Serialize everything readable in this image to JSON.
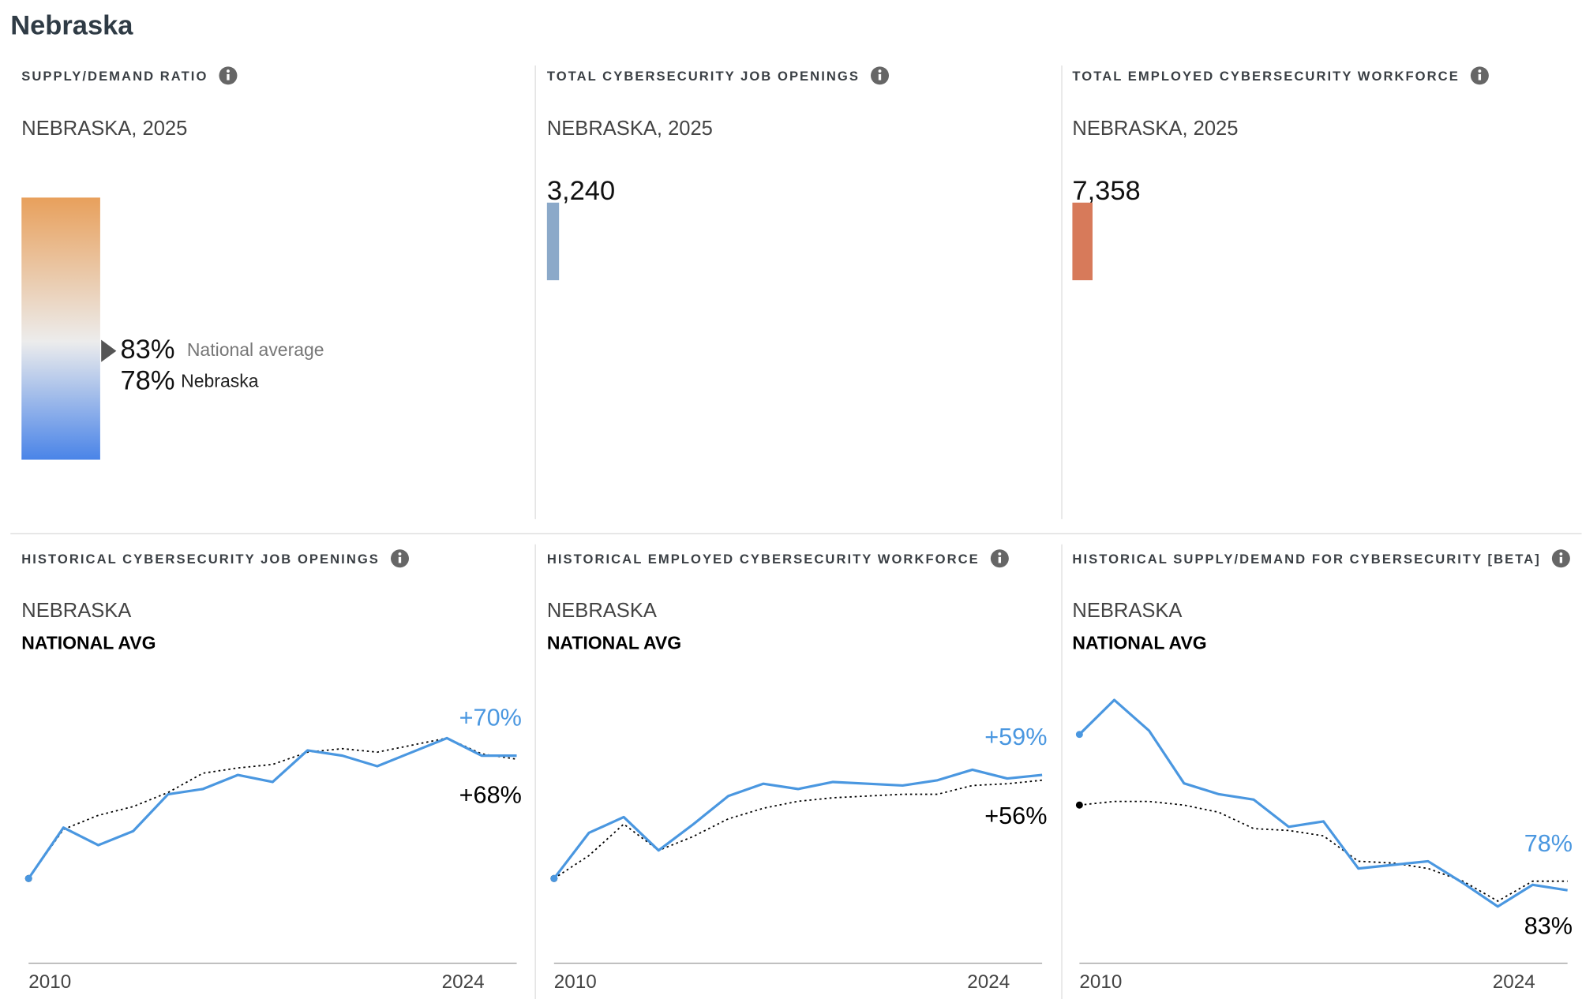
{
  "header": {
    "title": "Nebraska"
  },
  "chart_data": [
    {
      "type": "gauge",
      "title": "SUPPLY/DEMAND RATIO",
      "subtitle": "NEBRASKA, 2025",
      "series": [
        {
          "name": "National average",
          "values": [
            83
          ],
          "value_labels": [
            "83%"
          ]
        },
        {
          "name": "Nebraska",
          "values": [
            78
          ],
          "value_labels": [
            "78%"
          ]
        }
      ],
      "ylim": [
        0,
        200
      ],
      "colors": [
        "#e8a05c",
        "#ececec",
        "#4a84e8"
      ]
    },
    {
      "type": "bar",
      "title": "TOTAL CYBERSECURITY JOB OPENINGS",
      "subtitle": "NEBRASKA, 2025",
      "values": [
        3240
      ],
      "value_labels": [
        "3,240"
      ],
      "color": "#8ba9c9"
    },
    {
      "type": "bar",
      "title": "TOTAL EMPLOYED CYBERSECURITY WORKFORCE",
      "subtitle": "NEBRASKA, 2025",
      "values": [
        7358
      ],
      "value_labels": [
        "7,358"
      ],
      "color": "#d77a5a"
    },
    {
      "type": "line",
      "title": "HISTORICAL CYBERSECURITY JOB OPENINGS",
      "categories": [
        "2010",
        null,
        null,
        null,
        null,
        null,
        null,
        null,
        null,
        null,
        null,
        null,
        null,
        null,
        "2024"
      ],
      "series": [
        {
          "name": "NATIONAL AVG",
          "color": "#000000",
          "dashed": true,
          "values": [
            0,
            28,
            36,
            41,
            49,
            60,
            63,
            65,
            72,
            74,
            72,
            76,
            80,
            71,
            68
          ],
          "end_label": "+68%"
        },
        {
          "name": "NEBRASKA",
          "color": "#4a97e0",
          "dashed": false,
          "values": [
            0,
            29,
            19,
            27,
            48,
            51,
            59,
            55,
            73,
            70,
            64,
            72,
            80,
            70,
            70
          ],
          "end_label": "+70%"
        }
      ],
      "ylim": [
        -48,
        110
      ]
    },
    {
      "type": "line",
      "title": "HISTORICAL EMPLOYED CYBERSECURITY WORKFORCE",
      "categories": [
        "2010",
        null,
        null,
        null,
        null,
        null,
        null,
        null,
        null,
        null,
        null,
        null,
        null,
        null,
        "2024"
      ],
      "series": [
        {
          "name": "NATIONAL AVG",
          "color": "#000000",
          "dashed": true,
          "values": [
            0,
            13,
            31,
            16,
            24,
            34,
            40,
            44,
            46,
            47,
            48,
            48,
            53,
            54,
            56
          ],
          "end_label": "+56%"
        },
        {
          "name": "NEBRASKA",
          "color": "#4a97e0",
          "dashed": false,
          "values": [
            0,
            26,
            35,
            16,
            31,
            47,
            54,
            51,
            55,
            54,
            53,
            56,
            62,
            57,
            59
          ],
          "end_label": "+59%"
        }
      ],
      "ylim": [
        -48,
        110
      ]
    },
    {
      "type": "line",
      "title": "HISTORICAL SUPPLY/DEMAND FOR CYBERSECURITY [BETA]",
      "categories": [
        "2010",
        null,
        null,
        null,
        null,
        null,
        null,
        null,
        null,
        null,
        null,
        null,
        null,
        null,
        "2024"
      ],
      "series": [
        {
          "name": "NATIONAL AVG",
          "color": "#000000",
          "dashed": true,
          "values": [
            125,
            127,
            127,
            125,
            121,
            112,
            111,
            108,
            94,
            93,
            90,
            83,
            72,
            83,
            83
          ],
          "end_label": "83%"
        },
        {
          "name": "NEBRASKA",
          "color": "#4a97e0",
          "dashed": false,
          "values": [
            164,
            183,
            166,
            137,
            131,
            128,
            113,
            116,
            90,
            92,
            94,
            82,
            69,
            81,
            78
          ],
          "end_label": "78%"
        }
      ],
      "ylim": [
        38,
        191
      ]
    }
  ]
}
